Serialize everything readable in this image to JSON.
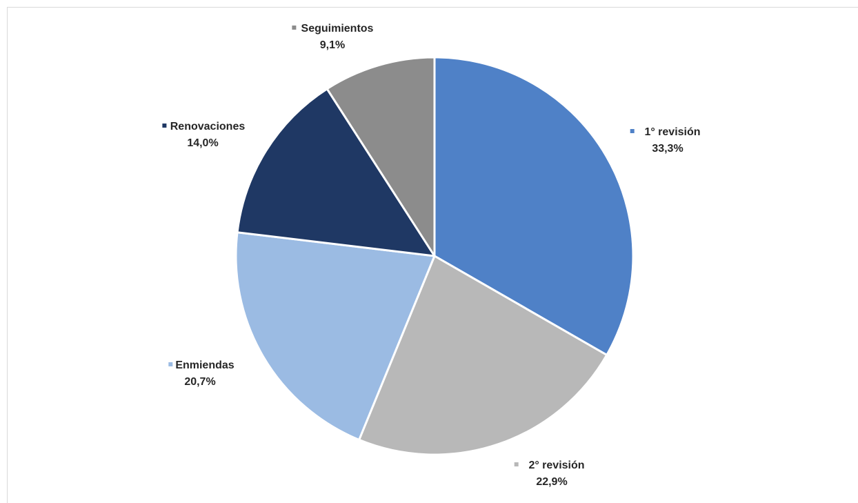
{
  "chart_data": {
    "type": "pie",
    "title": "",
    "slices": [
      {
        "label": "1° revisión",
        "value": 33.3,
        "value_label": "33,3%",
        "color": "#4f81c7"
      },
      {
        "label": "2° revisión",
        "value": 22.9,
        "value_label": "22,9%",
        "color": "#b8b8b8"
      },
      {
        "label": "Enmiendas",
        "value": 20.7,
        "value_label": "20,7%",
        "color": "#9bbbe3"
      },
      {
        "label": "Renovaciones",
        "value": 14.0,
        "value_label": "14,0%",
        "color": "#1f3864"
      },
      {
        "label": "Seguimientos",
        "value": 9.1,
        "value_label": "9,1%",
        "color": "#8c8c8c"
      }
    ],
    "start_angle_deg": 0,
    "direction": "clockwise",
    "legend": "labels next to slices"
  }
}
